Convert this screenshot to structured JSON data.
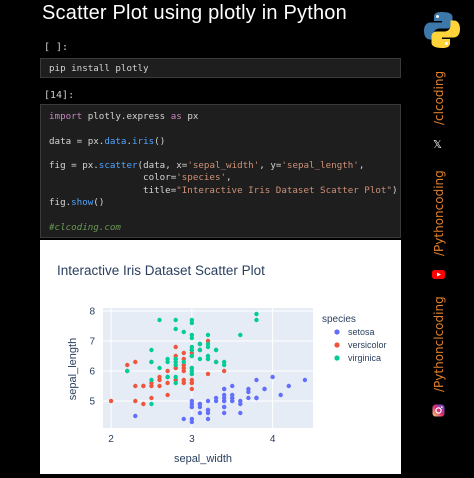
{
  "page": {
    "title": "Scatter Plot using plotly in Python"
  },
  "cells": [
    {
      "prompt": "[ ]:",
      "code": "pip install plotly"
    },
    {
      "prompt": "[14]:",
      "lines": {
        "l1a": "import",
        "l1b": " plotly.express ",
        "l1c": "as",
        "l1d": " px",
        "l2a": "data = px.",
        "l2b": "data",
        "l2c": ".",
        "l2d": "iris",
        "l2e": "()",
        "l3a": "fig = px.",
        "l3b": "scatter",
        "l3c": "(data, x=",
        "l3d": "'sepal_width'",
        "l3e": ", y=",
        "l3f": "'sepal_length'",
        "l3g": ",",
        "l4a": "                 color=",
        "l4b": "'species'",
        "l4c": ",",
        "l5a": "                 title=",
        "l5b": "\"Interactive Iris Dataset Scatter Plot\"",
        "l5c": ")",
        "l6a": "fig.",
        "l6b": "show",
        "l6c": "()",
        "comment": "#clcoding.com"
      }
    }
  ],
  "chart_data": {
    "type": "scatter",
    "title": "Interactive Iris Dataset Scatter Plot",
    "xlabel": "sepal_width",
    "ylabel": "sepal_length",
    "xlim": [
      1.9,
      4.5
    ],
    "ylim": [
      4.1,
      8.1
    ],
    "xticks": [
      "2",
      "3",
      "4"
    ],
    "yticks": [
      "5",
      "6",
      "7",
      "8"
    ],
    "legend_title": "species",
    "legend_position": "right",
    "grid": true,
    "series": [
      {
        "name": "setosa",
        "color": "#636efa",
        "points": [
          [
            3.5,
            5.1
          ],
          [
            3.0,
            4.9
          ],
          [
            3.2,
            4.7
          ],
          [
            3.1,
            4.6
          ],
          [
            3.6,
            5.0
          ],
          [
            3.9,
            5.4
          ],
          [
            3.4,
            4.6
          ],
          [
            3.4,
            5.0
          ],
          [
            2.9,
            4.4
          ],
          [
            3.1,
            4.9
          ],
          [
            3.7,
            5.4
          ],
          [
            3.4,
            4.8
          ],
          [
            3.0,
            4.8
          ],
          [
            3.0,
            4.3
          ],
          [
            4.0,
            5.8
          ],
          [
            4.4,
            5.7
          ],
          [
            3.9,
            5.4
          ],
          [
            3.5,
            5.1
          ],
          [
            3.8,
            5.7
          ],
          [
            3.8,
            5.1
          ],
          [
            3.4,
            5.4
          ],
          [
            3.7,
            5.1
          ],
          [
            3.6,
            4.6
          ],
          [
            3.3,
            5.1
          ],
          [
            3.4,
            4.8
          ],
          [
            3.0,
            5.0
          ],
          [
            3.4,
            5.0
          ],
          [
            3.5,
            5.2
          ],
          [
            3.4,
            5.2
          ],
          [
            3.2,
            4.7
          ],
          [
            3.1,
            4.8
          ],
          [
            3.4,
            5.4
          ],
          [
            4.1,
            5.2
          ],
          [
            4.2,
            5.5
          ],
          [
            3.1,
            4.9
          ],
          [
            3.2,
            5.0
          ],
          [
            3.5,
            5.5
          ],
          [
            3.6,
            4.9
          ],
          [
            3.0,
            4.4
          ],
          [
            3.4,
            5.1
          ],
          [
            3.5,
            5.0
          ],
          [
            2.3,
            4.5
          ],
          [
            3.2,
            4.4
          ],
          [
            3.5,
            5.0
          ],
          [
            3.8,
            5.1
          ],
          [
            3.0,
            4.8
          ],
          [
            3.8,
            5.1
          ],
          [
            3.2,
            4.6
          ],
          [
            3.7,
            5.3
          ],
          [
            3.3,
            5.0
          ]
        ]
      },
      {
        "name": "versicolor",
        "color": "#ef553b",
        "points": [
          [
            3.2,
            7.0
          ],
          [
            3.2,
            6.4
          ],
          [
            3.1,
            6.9
          ],
          [
            2.3,
            5.5
          ],
          [
            2.8,
            6.5
          ],
          [
            2.8,
            5.7
          ],
          [
            3.3,
            6.3
          ],
          [
            2.4,
            4.9
          ],
          [
            2.9,
            6.6
          ],
          [
            2.7,
            5.2
          ],
          [
            2.0,
            5.0
          ],
          [
            3.0,
            5.9
          ],
          [
            2.2,
            6.0
          ],
          [
            2.9,
            6.1
          ],
          [
            2.9,
            5.6
          ],
          [
            3.1,
            6.7
          ],
          [
            3.0,
            5.6
          ],
          [
            2.7,
            5.8
          ],
          [
            2.2,
            6.2
          ],
          [
            2.5,
            5.6
          ],
          [
            3.2,
            5.9
          ],
          [
            2.8,
            6.1
          ],
          [
            2.5,
            6.3
          ],
          [
            2.8,
            6.1
          ],
          [
            2.9,
            6.4
          ],
          [
            3.0,
            6.6
          ],
          [
            2.8,
            6.8
          ],
          [
            3.0,
            6.7
          ],
          [
            2.9,
            6.0
          ],
          [
            2.6,
            5.7
          ],
          [
            2.4,
            5.5
          ],
          [
            2.4,
            5.5
          ],
          [
            2.7,
            5.8
          ],
          [
            2.7,
            6.0
          ],
          [
            3.0,
            5.4
          ],
          [
            3.4,
            6.0
          ],
          [
            3.1,
            6.7
          ],
          [
            2.3,
            6.3
          ],
          [
            3.0,
            5.6
          ],
          [
            2.5,
            5.5
          ],
          [
            2.6,
            5.5
          ],
          [
            3.0,
            6.1
          ],
          [
            2.6,
            5.8
          ],
          [
            2.3,
            5.0
          ],
          [
            2.7,
            5.6
          ],
          [
            3.0,
            5.7
          ],
          [
            2.9,
            5.7
          ],
          [
            2.9,
            6.2
          ],
          [
            2.5,
            5.1
          ],
          [
            2.8,
            5.7
          ]
        ]
      },
      {
        "name": "virginica",
        "color": "#00cc96",
        "points": [
          [
            3.3,
            6.3
          ],
          [
            2.7,
            5.8
          ],
          [
            3.0,
            7.1
          ],
          [
            2.9,
            6.3
          ],
          [
            3.0,
            6.5
          ],
          [
            3.0,
            7.6
          ],
          [
            2.5,
            4.9
          ],
          [
            2.9,
            7.3
          ],
          [
            2.5,
            6.7
          ],
          [
            3.6,
            7.2
          ],
          [
            3.2,
            6.5
          ],
          [
            2.7,
            6.4
          ],
          [
            3.0,
            6.8
          ],
          [
            2.5,
            5.7
          ],
          [
            2.8,
            5.8
          ],
          [
            3.2,
            6.4
          ],
          [
            3.0,
            6.5
          ],
          [
            3.8,
            7.7
          ],
          [
            2.6,
            7.7
          ],
          [
            2.2,
            6.0
          ],
          [
            3.2,
            6.9
          ],
          [
            2.8,
            5.6
          ],
          [
            2.8,
            7.7
          ],
          [
            2.7,
            6.3
          ],
          [
            3.3,
            6.7
          ],
          [
            3.2,
            7.2
          ],
          [
            2.8,
            6.2
          ],
          [
            3.0,
            6.1
          ],
          [
            2.8,
            6.4
          ],
          [
            3.0,
            7.2
          ],
          [
            2.8,
            7.4
          ],
          [
            3.8,
            7.9
          ],
          [
            2.8,
            6.4
          ],
          [
            2.8,
            6.3
          ],
          [
            2.6,
            6.1
          ],
          [
            3.0,
            7.7
          ],
          [
            3.4,
            6.3
          ],
          [
            3.1,
            6.4
          ],
          [
            3.0,
            6.0
          ],
          [
            3.1,
            6.9
          ],
          [
            3.1,
            6.7
          ],
          [
            3.1,
            6.9
          ],
          [
            2.7,
            5.8
          ],
          [
            3.2,
            6.8
          ],
          [
            3.3,
            6.7
          ],
          [
            3.0,
            6.7
          ],
          [
            2.5,
            6.3
          ],
          [
            3.0,
            6.5
          ],
          [
            3.4,
            6.2
          ],
          [
            3.0,
            5.9
          ]
        ]
      }
    ]
  },
  "sidebar": {
    "logo": "python-logo-icon",
    "handles": [
      {
        "icon": "x-icon",
        "label": "/clcoding",
        "color": "#e0802c"
      },
      {
        "icon": "youtube-icon",
        "label": "/Pythoncoding",
        "color": "#e0802c"
      },
      {
        "icon": "instagram-icon",
        "label": "/Pythonclcoding",
        "color": "#e0802c"
      }
    ],
    "x_glyph": "𝕏"
  }
}
